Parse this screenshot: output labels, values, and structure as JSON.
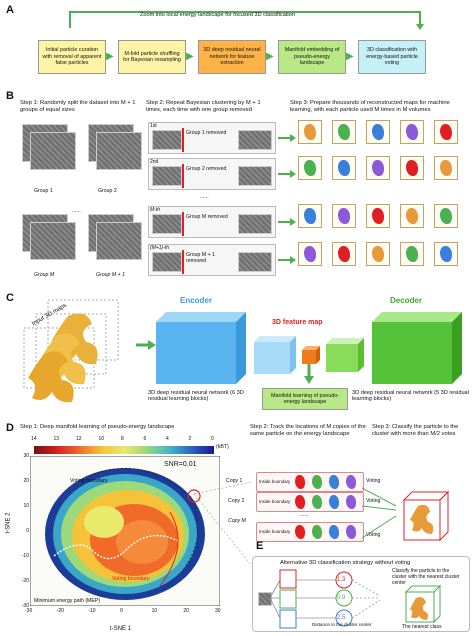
{
  "panels": {
    "a": "A",
    "b": "B",
    "c": "C",
    "d": "D",
    "e": "E"
  },
  "panel_a": {
    "zoom_label": "Zoom into local energy landscape for focused 3D classification",
    "boxes": [
      "Initial particle curation with removal of apparent false particles",
      "M-fold particle shuffling for Bayesian resampling",
      "3D deep residual neural network for feature extraction",
      "Manifold embedding of pseudo-energy landscape",
      "3D classification with energy-based particle voting"
    ]
  },
  "panel_b": {
    "step1": "Step 1: Randomly split the dataset into M + 1 groups of equal sizes",
    "step2": "Step 2: Repeat Bayesian clustering by M + 1 times, each time with one group removed",
    "step3": "Step 3: Prepare thousands of reconstructed maps for machine learning, with each particle used M times in M volumes",
    "groups": [
      "Group 1",
      "Group 2",
      "Group M",
      "Group M + 1"
    ],
    "dots": "......",
    "runs": [
      "1st",
      "2nd",
      "M-th",
      "(M+1)-th"
    ],
    "removed": [
      "Group 1 removed",
      "Group 2 removed",
      "Group M removed",
      "Group M + 1 removed"
    ]
  },
  "panel_c": {
    "input_label": "Input 3D maps",
    "encoder": "Encoder",
    "decoder": "Decoder",
    "feature_map": "3D feature map",
    "encoder_desc": "3D deep residual neural network (6 3D residual learning blocks)",
    "manifold": "Manifold learning of pseudo-energy landscape",
    "decoder_desc": "3D deep residual neural network (5 3D residual learning blocks)"
  },
  "panel_d": {
    "step1": "Step 1: Deep manifold learning of pseudo-energy landscape",
    "step2": "Step 2: Track the locations of M copies of the same particle on the energy landscape",
    "step3": "Step 3: Classify the particle to the cluster with more than M/2 votes",
    "colorbar_ticks": [
      "14",
      "13",
      "12",
      "10",
      "8",
      "6",
      "4",
      "2",
      "0"
    ],
    "colorbar_unit": "(kBT)",
    "voting_boundary_top": "Voting boundary",
    "voting_boundary_bottom": "Voting boundary",
    "snr": "SNR=0.01",
    "mep": "Minimum energy path (MEP)",
    "x_label": "t-SNE 1",
    "y_label": "t-SNE 2",
    "x_ticks": [
      "-30",
      "-20",
      "-10",
      "0",
      "10",
      "20",
      "30"
    ],
    "y_ticks": [
      "30",
      "20",
      "10",
      "0",
      "-10",
      "-20",
      "-30"
    ],
    "copies": [
      "Copy 1",
      "Copy 2",
      "Copy M"
    ],
    "inside": [
      "Inside boundary",
      "Inside boundary",
      "Inside boundary"
    ],
    "voting": [
      "Voting",
      "Voting",
      "Voting"
    ],
    "dots": "......"
  },
  "panel_e": {
    "title": "Alternative 3D classification strategy without voting",
    "classify": "Classify the particle to the cluster with the nearest cluster center",
    "distances": [
      "1.3",
      "0.9",
      "2.5"
    ],
    "distance_label": "Distance to the cluster center",
    "nearest": "The nearest class"
  },
  "colors": {
    "box_yellow": "#fff3a6",
    "box_orange": "#ffb347",
    "box_green": "#b8e986",
    "box_cyan": "#c6f0f7",
    "arrow_green": "#4caf50",
    "encoder_blue": "#5ab4ef",
    "decoder_green": "#55c23a",
    "feature_orange": "#f07b1a",
    "removed_red": "#e02020"
  }
}
